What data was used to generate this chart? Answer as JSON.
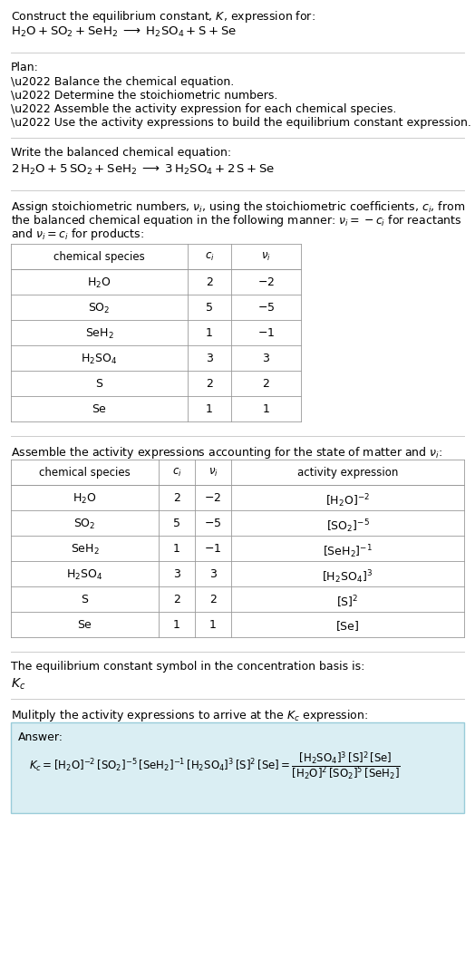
{
  "bg_color": "#ffffff",
  "text_color": "#000000",
  "answer_bg_color": "#daeef3",
  "separator_color": "#cccccc",
  "table_line_color": "#999999",
  "font_size": 9.0,
  "title_line1": "Construct the equilibrium constant, $K$, expression for:",
  "title_line2": "$\\mathrm{H_2O + SO_2 + SeH_2 \\;\\longrightarrow\\; H_2SO_4 + S + Se}$",
  "plan_header": "Plan:",
  "plan_items": [
    "\\u2022 Balance the chemical equation.",
    "\\u2022 Determine the stoichiometric numbers.",
    "\\u2022 Assemble the activity expression for each chemical species.",
    "\\u2022 Use the activity expressions to build the equilibrium constant expression."
  ],
  "balanced_header": "Write the balanced chemical equation:",
  "balanced_eq": "$\\mathrm{2\\,H_2O + 5\\,SO_2 + SeH_2 \\;\\longrightarrow\\; 3\\,H_2SO_4 + 2\\,S + Se}$",
  "stoich_header": [
    "Assign stoichiometric numbers, $\\nu_i$, using the stoichiometric coefficients, $c_i$, from",
    "the balanced chemical equation in the following manner: $\\nu_i = -c_i$ for reactants",
    "and $\\nu_i = c_i$ for products:"
  ],
  "table1_headers": [
    "chemical species",
    "$c_i$",
    "$\\nu_i$"
  ],
  "table1_data": [
    [
      "$\\mathrm{H_2O}$",
      "2",
      "$-2$"
    ],
    [
      "$\\mathrm{SO_2}$",
      "5",
      "$-5$"
    ],
    [
      "$\\mathrm{SeH_2}$",
      "1",
      "$-1$"
    ],
    [
      "$\\mathrm{H_2SO_4}$",
      "3",
      "3"
    ],
    [
      "S",
      "2",
      "2"
    ],
    [
      "Se",
      "1",
      "1"
    ]
  ],
  "activity_header": "Assemble the activity expressions accounting for the state of matter and $\\nu_i$:",
  "table2_headers": [
    "chemical species",
    "$c_i$",
    "$\\nu_i$",
    "activity expression"
  ],
  "table2_data": [
    [
      "$\\mathrm{H_2O}$",
      "2",
      "$-2$",
      "$[\\mathrm{H_2O}]^{-2}$"
    ],
    [
      "$\\mathrm{SO_2}$",
      "5",
      "$-5$",
      "$[\\mathrm{SO_2}]^{-5}$"
    ],
    [
      "$\\mathrm{SeH_2}$",
      "1",
      "$-1$",
      "$[\\mathrm{SeH_2}]^{-1}$"
    ],
    [
      "$\\mathrm{H_2SO_4}$",
      "3",
      "3",
      "$[\\mathrm{H_2SO_4}]^3$"
    ],
    [
      "S",
      "2",
      "2",
      "$[\\mathrm{S}]^2$"
    ],
    [
      "Se",
      "1",
      "1",
      "$[\\mathrm{Se}]$"
    ]
  ],
  "kc_header": "The equilibrium constant symbol in the concentration basis is:",
  "kc_symbol": "$K_c$",
  "multiply_header": "Mulitply the activity expressions to arrive at the $K_c$ expression:",
  "answer_label": "Answer:",
  "answer_kc": "$K_c = [\\mathrm{H_2O}]^{-2}\\,[\\mathrm{SO_2}]^{-5}\\,[\\mathrm{SeH_2}]^{-1}\\,[\\mathrm{H_2SO_4}]^3\\,[\\mathrm{S}]^2\\,[\\mathrm{Se}] = \\dfrac{[\\mathrm{H_2SO_4}]^3\\,[\\mathrm{S}]^2\\,[\\mathrm{Se}]}{[\\mathrm{H_2O}]^2\\,[\\mathrm{SO_2}]^5\\,[\\mathrm{SeH_2}]}$"
}
